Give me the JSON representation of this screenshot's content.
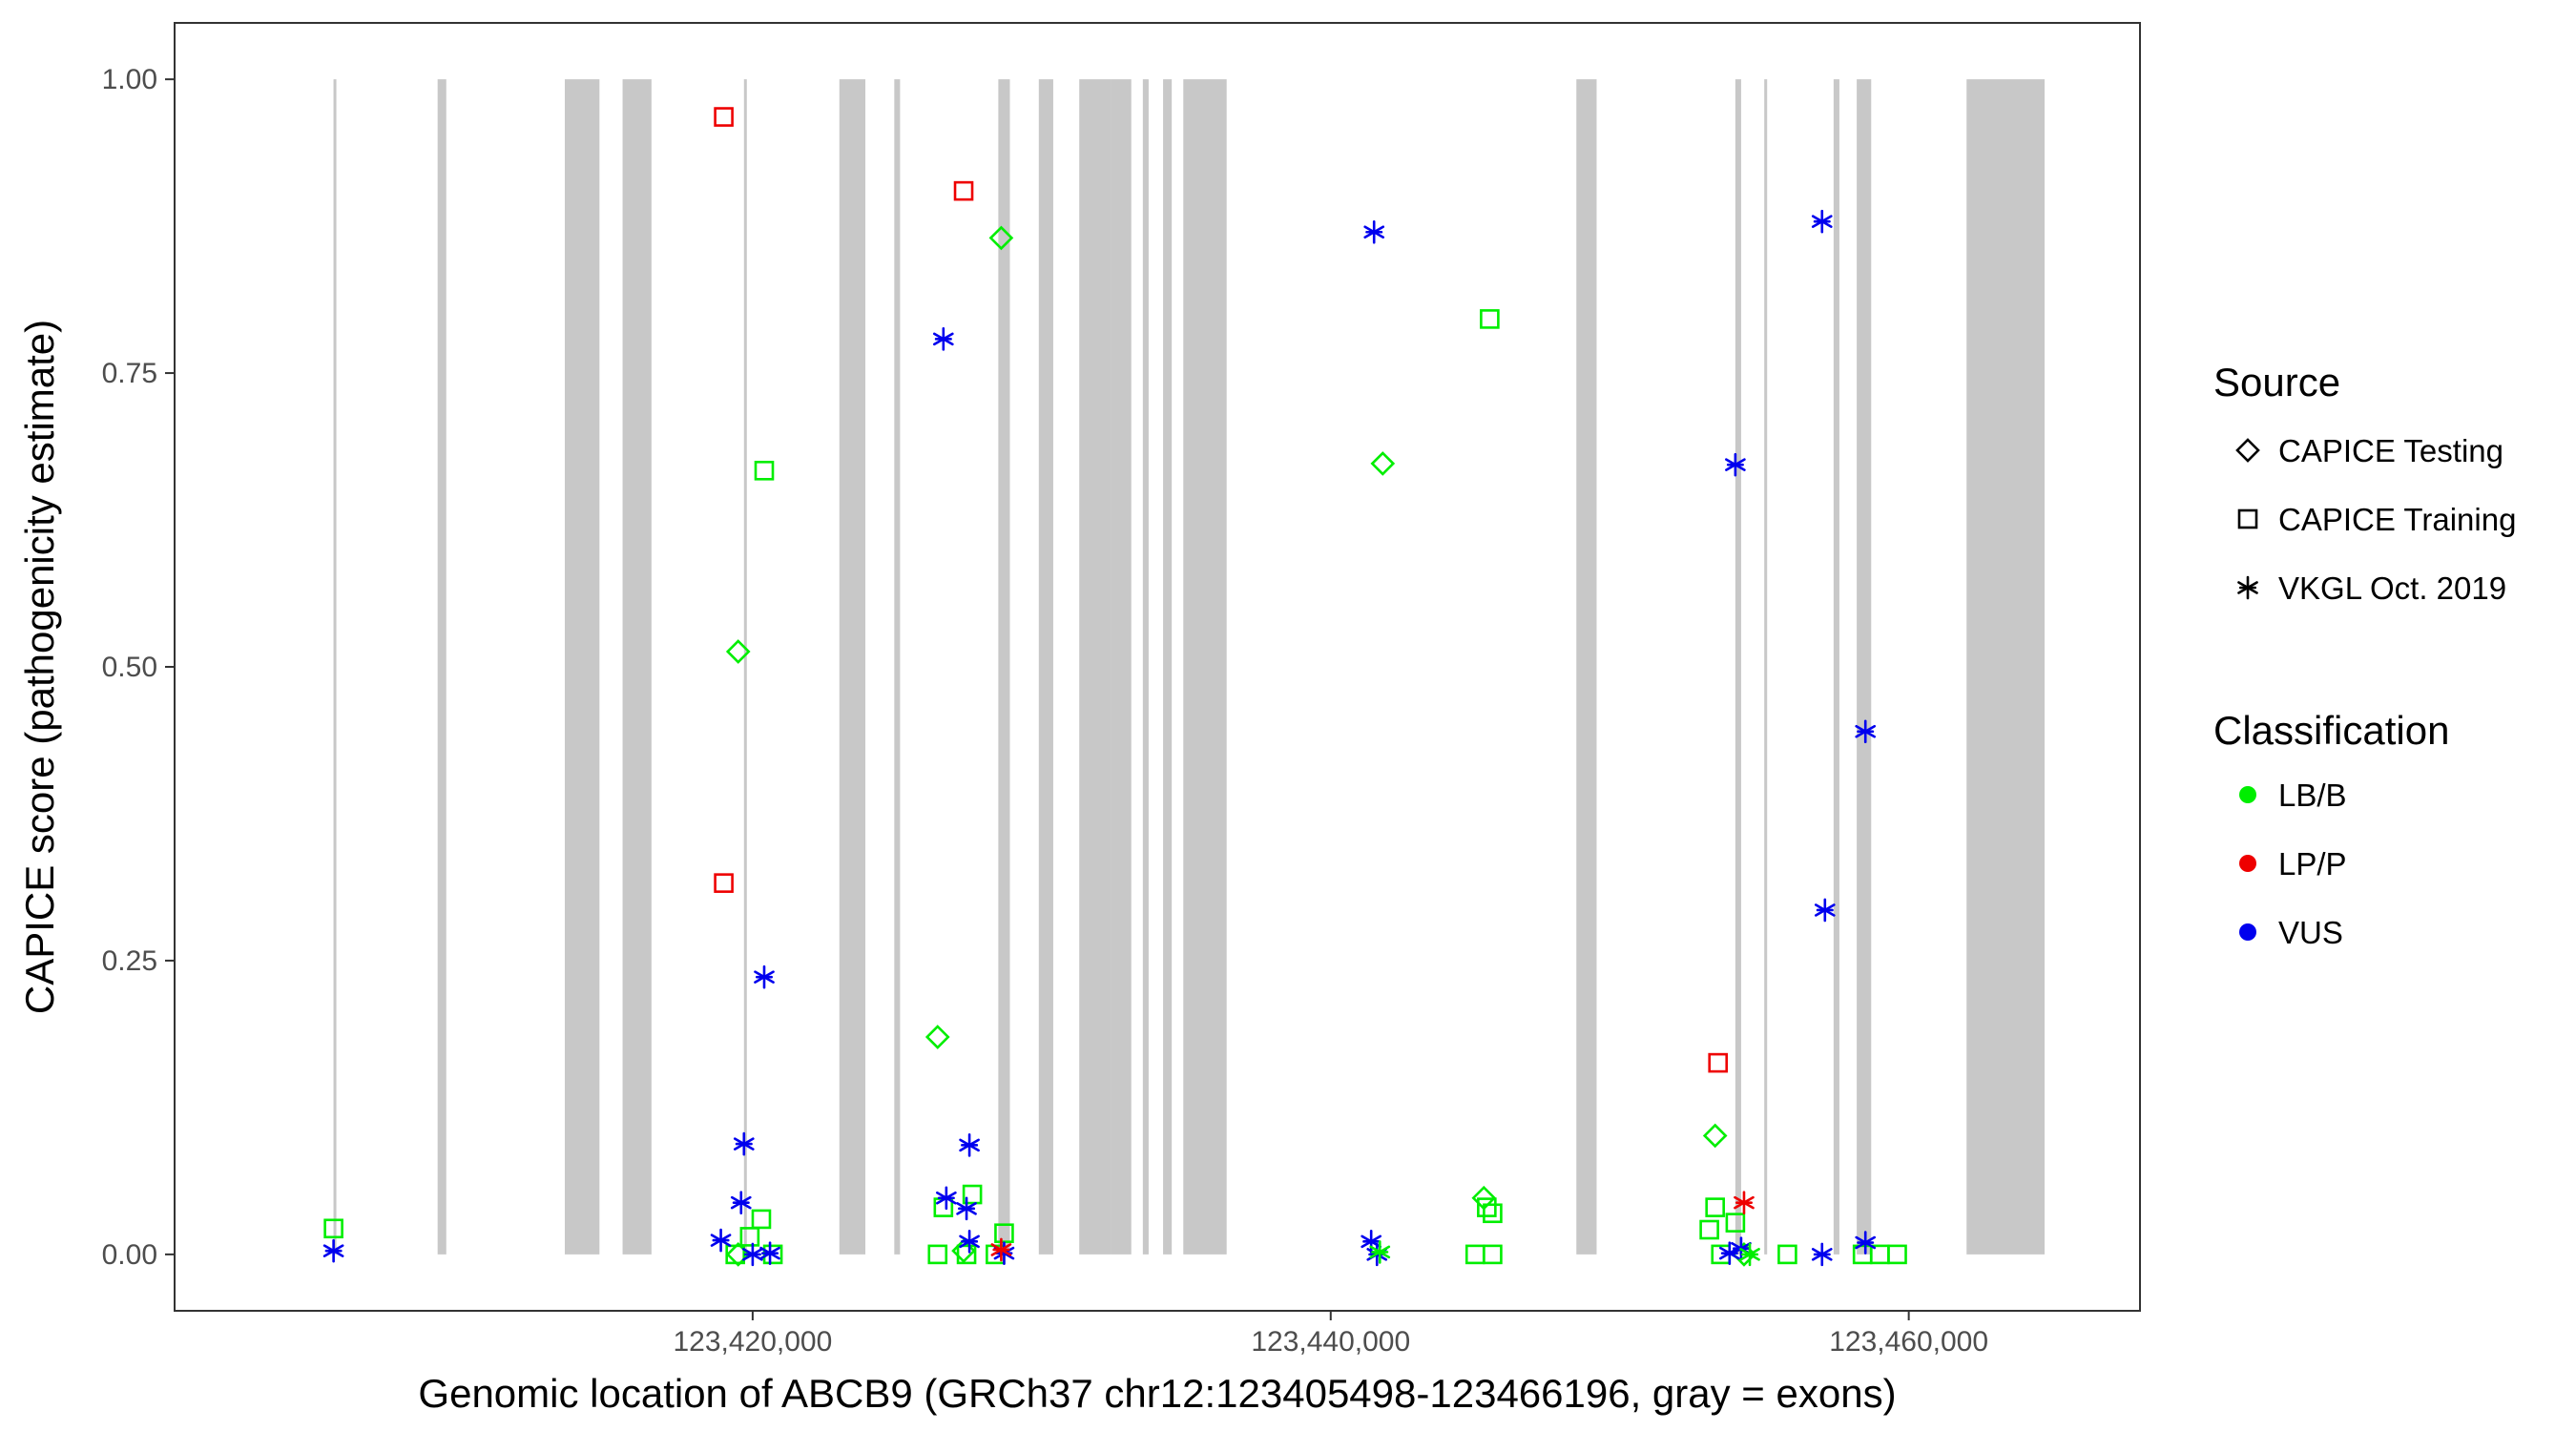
{
  "chart_data": {
    "type": "scatter",
    "xlabel": "Genomic location of ABCB9 (GRCh37 chr12:123405498-123466196, gray = exons)",
    "ylabel": "CAPICE score (pathogenicity estimate)",
    "xlim": [
      123400000,
      123468000
    ],
    "ylim": [
      -0.048,
      1.048
    ],
    "x_ticks": [
      123420000,
      123440000,
      123460000
    ],
    "x_tick_labels": [
      "123,420,000",
      "123,440,000",
      "123,460,000"
    ],
    "y_ticks": [
      0,
      0.25,
      0.5,
      0.75,
      1.0
    ],
    "y_tick_labels": [
      "0.00",
      "0.25",
      "0.50",
      "0.75",
      "1.00"
    ],
    "grid": false,
    "legend_position": "right",
    "exon_color": "#c8c8c8",
    "exons": [
      [
        123405498,
        123405560
      ],
      [
        123409100,
        123409400
      ],
      [
        123413500,
        123414700
      ],
      [
        123415500,
        123416500
      ],
      [
        123419700,
        123419780
      ],
      [
        123423000,
        123423900
      ],
      [
        123424900,
        123425100
      ],
      [
        123428500,
        123428900
      ],
      [
        123429900,
        123430400
      ],
      [
        123431300,
        123432400
      ],
      [
        123432400,
        123433100
      ],
      [
        123433500,
        123433700
      ],
      [
        123434200,
        123434500
      ],
      [
        123434900,
        123436400
      ],
      [
        123448500,
        123449200
      ],
      [
        123454000,
        123454200
      ],
      [
        123455000,
        123455100
      ],
      [
        123457400,
        123457600
      ],
      [
        123458200,
        123458700
      ],
      [
        123462000,
        123464700
      ]
    ],
    "legend": {
      "source_title": "Source",
      "source_items": [
        "CAPICE Testing",
        "CAPICE Training",
        "VKGL Oct. 2019"
      ],
      "class_title": "Classification",
      "class_items": [
        "LB/B",
        "LP/P",
        "VUS"
      ]
    },
    "colors": {
      "LB/B": "#00ee00",
      "LP/P": "#ee0000",
      "VUS": "#0000ee"
    },
    "series": [
      {
        "name": "CAPICE Testing",
        "marker": "diamond",
        "points": [
          {
            "x": 123419500,
            "y": 0.513,
            "class": "LB/B"
          },
          {
            "x": 123428600,
            "y": 0.865,
            "class": "LB/B"
          },
          {
            "x": 123426400,
            "y": 0.185,
            "class": "LB/B"
          },
          {
            "x": 123441800,
            "y": 0.673,
            "class": "LB/B"
          },
          {
            "x": 123453300,
            "y": 0.101,
            "class": "LB/B"
          },
          {
            "x": 123445300,
            "y": 0.048,
            "class": "LB/B"
          },
          {
            "x": 123427300,
            "y": 0.003,
            "class": "LB/B"
          },
          {
            "x": 123419500,
            "y": 0.0,
            "class": "LB/B"
          },
          {
            "x": 123454300,
            "y": 0.0,
            "class": "LB/B"
          }
        ]
      },
      {
        "name": "CAPICE Training",
        "marker": "square",
        "points": [
          {
            "x": 123419000,
            "y": 0.968,
            "class": "LP/P"
          },
          {
            "x": 123427300,
            "y": 0.905,
            "class": "LP/P"
          },
          {
            "x": 123419000,
            "y": 0.316,
            "class": "LP/P"
          },
          {
            "x": 123453400,
            "y": 0.163,
            "class": "LP/P"
          },
          {
            "x": 123420400,
            "y": 0.667,
            "class": "LB/B"
          },
          {
            "x": 123445500,
            "y": 0.796,
            "class": "LB/B"
          },
          {
            "x": 123405500,
            "y": 0.022,
            "class": "LB/B"
          },
          {
            "x": 123420300,
            "y": 0.03,
            "class": "LB/B"
          },
          {
            "x": 123426600,
            "y": 0.04,
            "class": "LB/B"
          },
          {
            "x": 123427600,
            "y": 0.051,
            "class": "LB/B"
          },
          {
            "x": 123428700,
            "y": 0.018,
            "class": "LB/B"
          },
          {
            "x": 123445400,
            "y": 0.04,
            "class": "LB/B"
          },
          {
            "x": 123445600,
            "y": 0.035,
            "class": "LB/B"
          },
          {
            "x": 123453300,
            "y": 0.04,
            "class": "LB/B"
          },
          {
            "x": 123453100,
            "y": 0.021,
            "class": "LB/B"
          },
          {
            "x": 123454000,
            "y": 0.027,
            "class": "LB/B"
          },
          {
            "x": 123419900,
            "y": 0.015,
            "class": "LB/B"
          },
          {
            "x": 123419400,
            "y": 0.0,
            "class": "LB/B"
          },
          {
            "x": 123420700,
            "y": 0.0,
            "class": "LB/B"
          },
          {
            "x": 123426400,
            "y": 0.0,
            "class": "LB/B"
          },
          {
            "x": 123427400,
            "y": 0.0,
            "class": "LB/B"
          },
          {
            "x": 123428400,
            "y": 0.0,
            "class": "LB/B"
          },
          {
            "x": 123445000,
            "y": 0.0,
            "class": "LB/B"
          },
          {
            "x": 123445600,
            "y": 0.0,
            "class": "LB/B"
          },
          {
            "x": 123453500,
            "y": 0.0,
            "class": "LB/B"
          },
          {
            "x": 123455800,
            "y": 0.0,
            "class": "LB/B"
          },
          {
            "x": 123458400,
            "y": 0.0,
            "class": "LB/B"
          },
          {
            "x": 123459000,
            "y": 0.0,
            "class": "LB/B"
          },
          {
            "x": 123459600,
            "y": 0.0,
            "class": "LB/B"
          }
        ]
      },
      {
        "name": "VKGL Oct. 2019",
        "marker": "asterisk",
        "points": [
          {
            "x": 123426600,
            "y": 0.779,
            "class": "VUS"
          },
          {
            "x": 123441500,
            "y": 0.87,
            "class": "VUS"
          },
          {
            "x": 123457000,
            "y": 0.879,
            "class": "VUS"
          },
          {
            "x": 123454000,
            "y": 0.672,
            "class": "VUS"
          },
          {
            "x": 123458500,
            "y": 0.445,
            "class": "VUS"
          },
          {
            "x": 123457100,
            "y": 0.293,
            "class": "VUS"
          },
          {
            "x": 123420400,
            "y": 0.236,
            "class": "VUS"
          },
          {
            "x": 123419700,
            "y": 0.094,
            "class": "VUS"
          },
          {
            "x": 123427500,
            "y": 0.093,
            "class": "VUS"
          },
          {
            "x": 123419600,
            "y": 0.044,
            "class": "VUS"
          },
          {
            "x": 123426700,
            "y": 0.048,
            "class": "VUS"
          },
          {
            "x": 123427400,
            "y": 0.039,
            "class": "VUS"
          },
          {
            "x": 123427500,
            "y": 0.011,
            "class": "VUS"
          },
          {
            "x": 123418900,
            "y": 0.012,
            "class": "VUS"
          },
          {
            "x": 123441400,
            "y": 0.011,
            "class": "VUS"
          },
          {
            "x": 123458500,
            "y": 0.01,
            "class": "VUS"
          },
          {
            "x": 123454200,
            "y": 0.005,
            "class": "VUS"
          },
          {
            "x": 123405500,
            "y": 0.003,
            "class": "VUS"
          },
          {
            "x": 123420600,
            "y": 0.001,
            "class": "VUS"
          },
          {
            "x": 123420000,
            "y": 0.0,
            "class": "VUS"
          },
          {
            "x": 123428700,
            "y": 0.001,
            "class": "VUS"
          },
          {
            "x": 123441600,
            "y": 0.0,
            "class": "VUS"
          },
          {
            "x": 123453800,
            "y": 0.001,
            "class": "VUS"
          },
          {
            "x": 123457000,
            "y": 0.0,
            "class": "VUS"
          },
          {
            "x": 123428600,
            "y": 0.004,
            "class": "LP/P"
          },
          {
            "x": 123454300,
            "y": 0.044,
            "class": "LP/P"
          },
          {
            "x": 123441700,
            "y": 0.002,
            "class": "LB/B"
          },
          {
            "x": 123454500,
            "y": 0.0,
            "class": "LB/B"
          }
        ]
      }
    ]
  }
}
